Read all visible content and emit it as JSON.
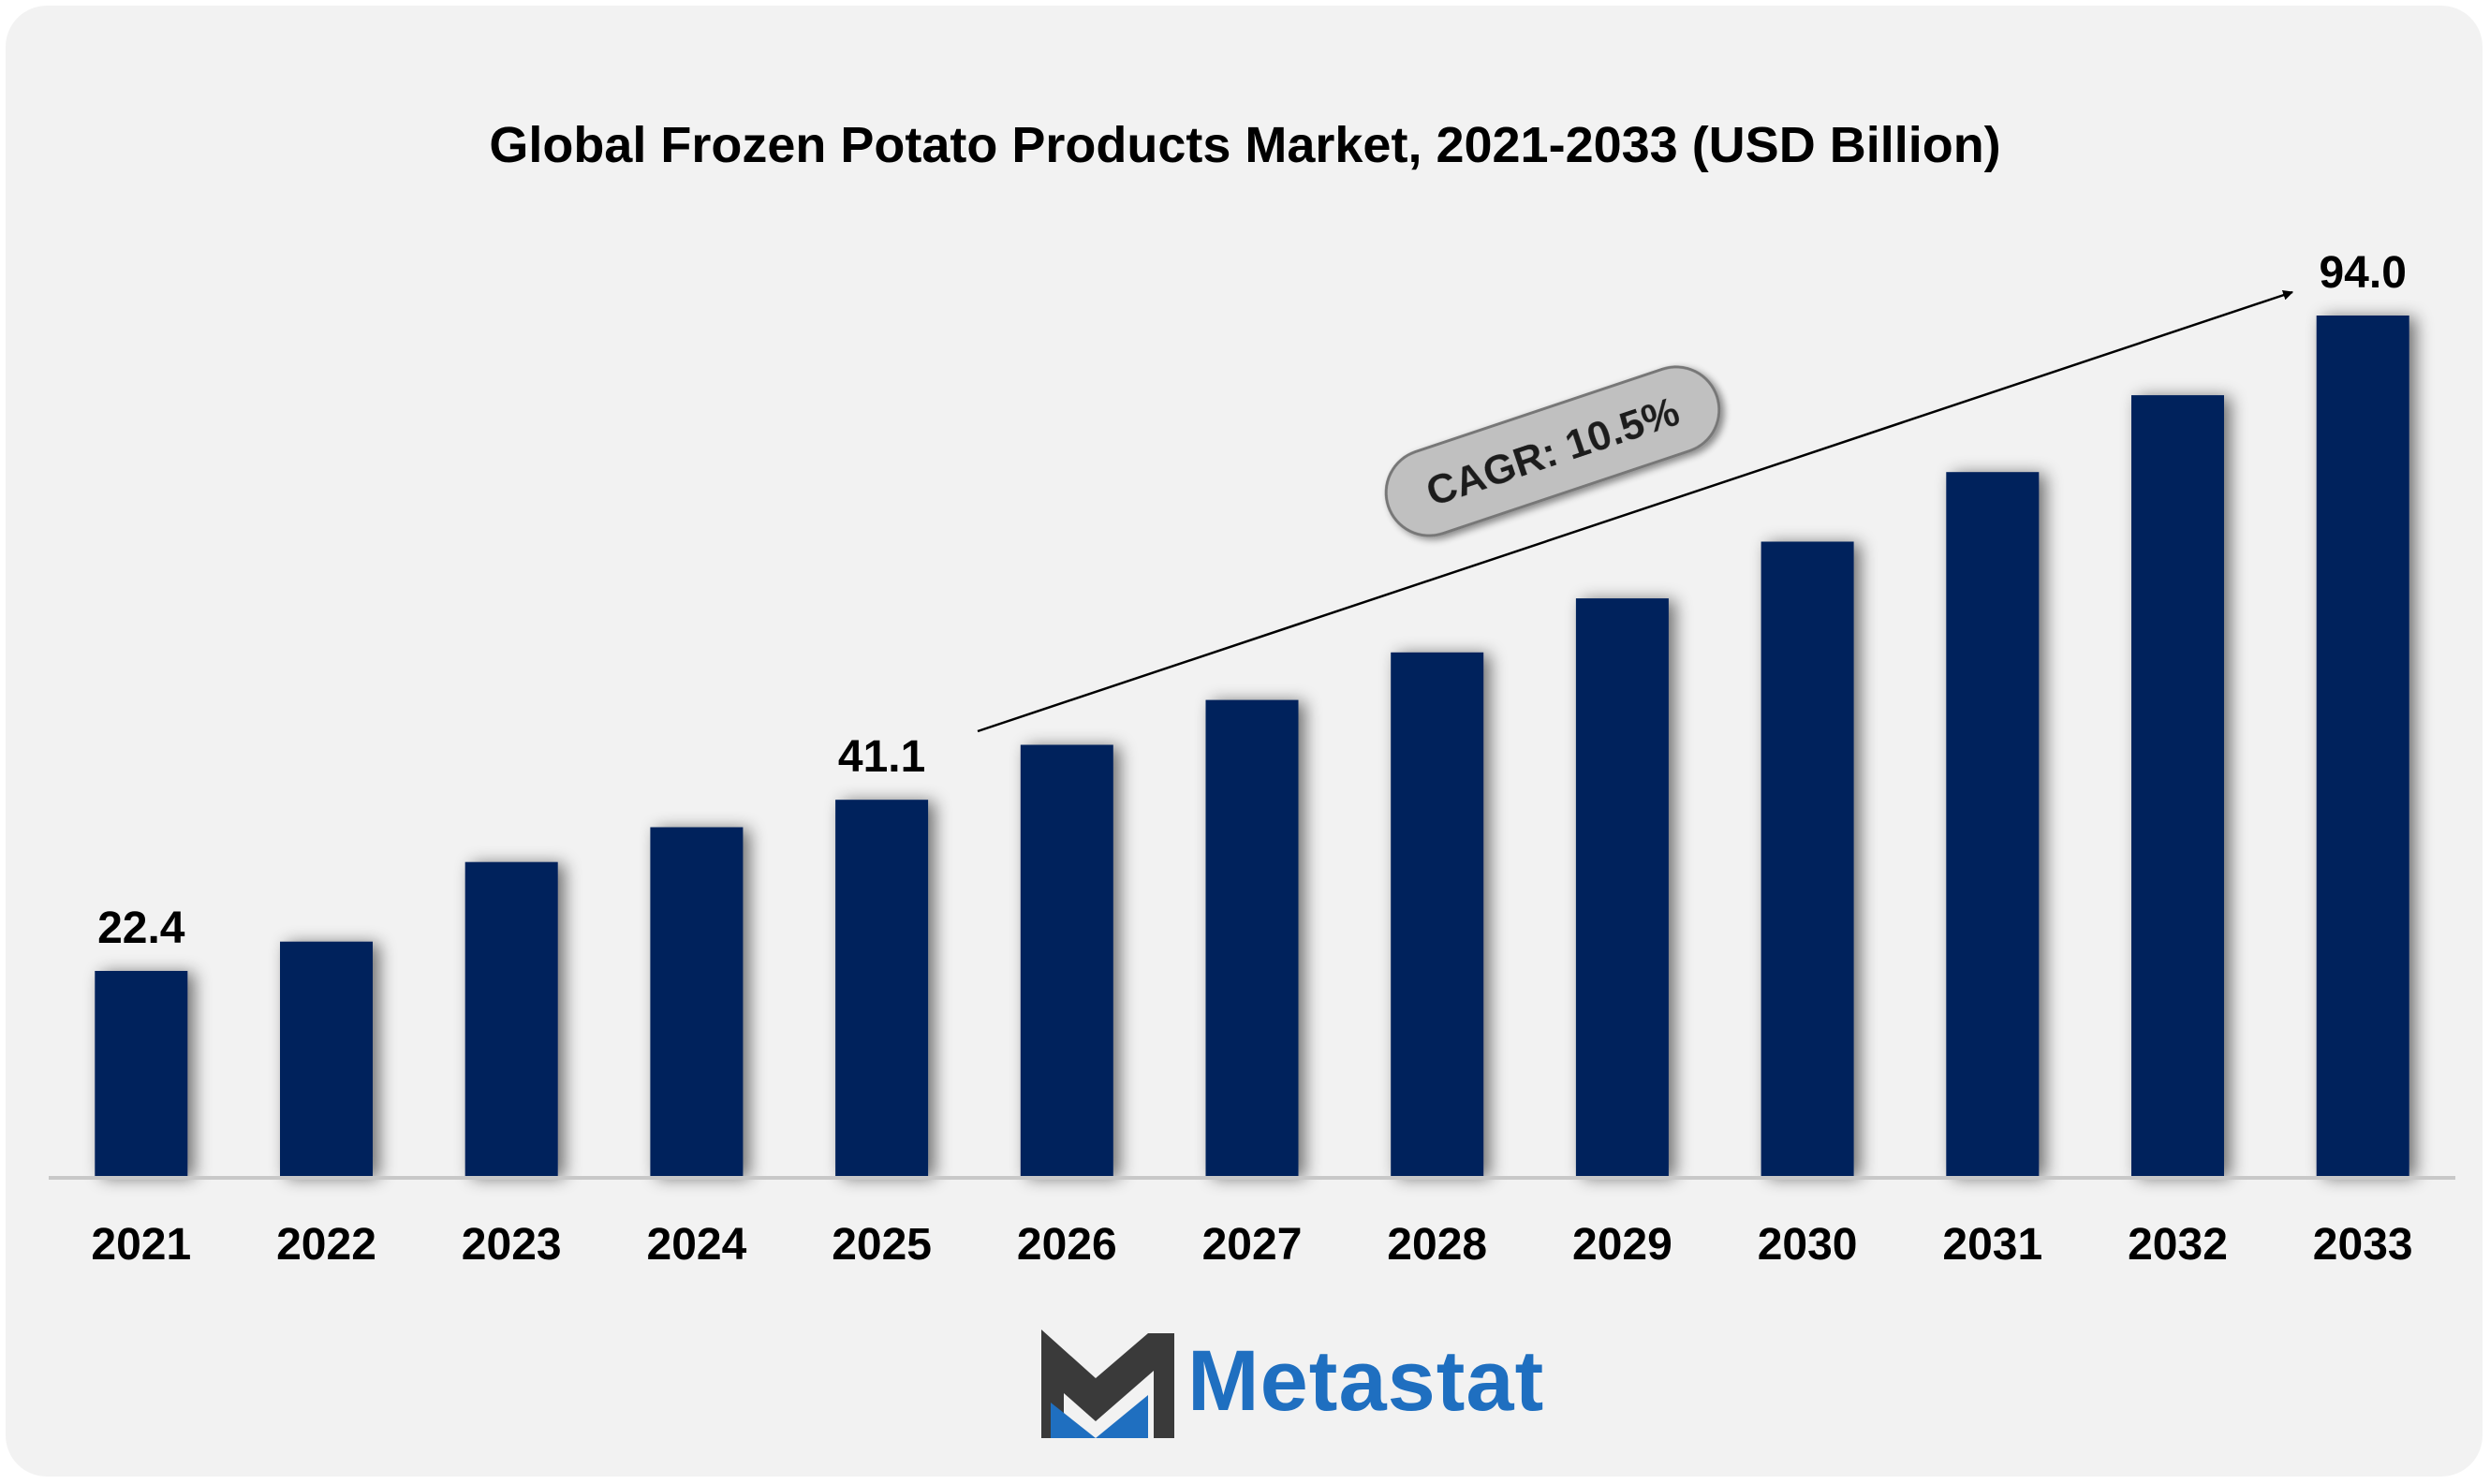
{
  "colors": {
    "background": "#f2f2f2",
    "bar": "#00205b",
    "logo_blue": "#1f6fc0",
    "logo_dark": "#3a3a3a",
    "cagr_pill": "#c0c0c0"
  },
  "chart_data": {
    "type": "bar",
    "title": "Global Frozen Potato Products Market, 2021-2033 (USD Billion)",
    "xlabel": "",
    "ylabel": "",
    "ylim": [
      0,
      100
    ],
    "grid": false,
    "legend": "none",
    "categories": [
      "2021",
      "2022",
      "2023",
      "2024",
      "2025",
      "2026",
      "2027",
      "2028",
      "2029",
      "2030",
      "2031",
      "2032",
      "2033"
    ],
    "values": [
      22.4,
      25.6,
      34.3,
      38.1,
      41.1,
      47.1,
      52.0,
      57.2,
      63.1,
      69.3,
      76.9,
      85.3,
      94.0
    ],
    "data_labels": [
      {
        "index": 0,
        "text": "22.4"
      },
      {
        "index": 4,
        "text": "41.1"
      },
      {
        "index": 12,
        "text": "94.0"
      }
    ],
    "annotation": {
      "text": "CAGR: 10.5%"
    }
  },
  "logo": {
    "icon": "metastat-m-logo-icon",
    "text": "Metastat"
  }
}
